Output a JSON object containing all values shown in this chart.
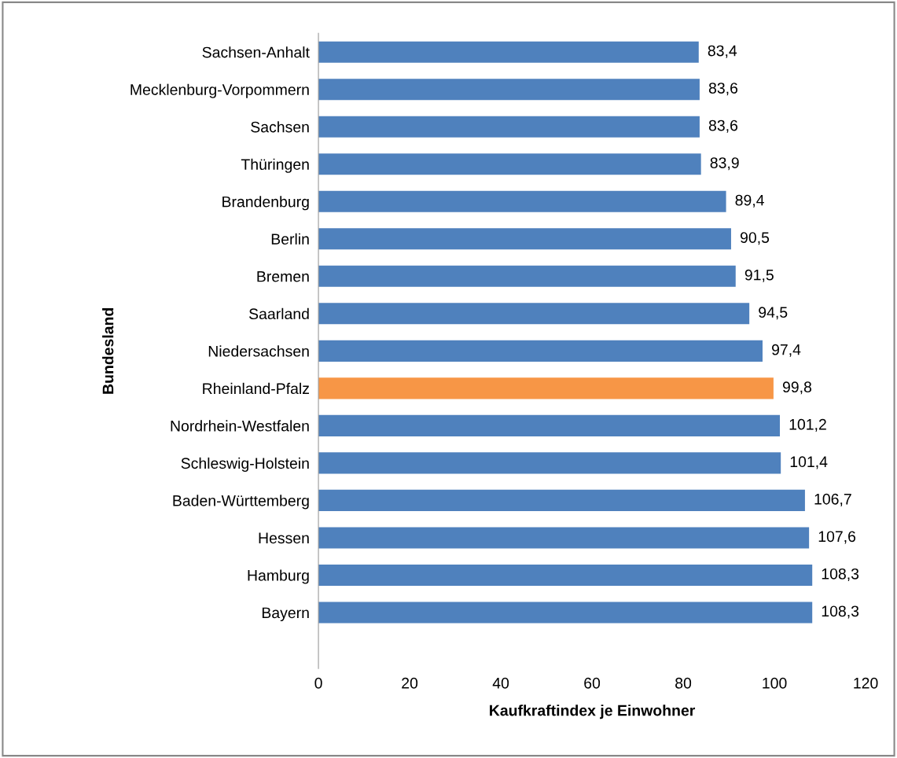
{
  "chart_data": {
    "type": "bar",
    "orientation": "horizontal",
    "xlabel": "Kaufkraftindex je Einwohner",
    "ylabel": "Bundesland",
    "categories": [
      "Sachsen-Anhalt",
      "Mecklenburg-Vorpommern",
      "Sachsen",
      "Thüringen",
      "Brandenburg",
      "Berlin",
      "Bremen",
      "Saarland",
      "Niedersachsen",
      "Rheinland-Pfalz",
      "Nordrhein-Westfalen",
      "Schleswig-Holstein",
      "Baden-Württemberg",
      "Hessen",
      "Hamburg",
      "Bayern"
    ],
    "values": [
      83.4,
      83.6,
      83.6,
      83.9,
      89.4,
      90.5,
      91.5,
      94.5,
      97.4,
      99.8,
      101.2,
      101.4,
      106.7,
      107.6,
      108.3,
      108.3
    ],
    "value_labels": [
      "83,4",
      "83,6",
      "83,6",
      "83,9",
      "89,4",
      "90,5",
      "91,5",
      "94,5",
      "97,4",
      "99,8",
      "101,2",
      "101,4",
      "106,7",
      "107,6",
      "108,3",
      "108,3"
    ],
    "colors": [
      "#4f81bd",
      "#4f81bd",
      "#4f81bd",
      "#4f81bd",
      "#4f81bd",
      "#4f81bd",
      "#4f81bd",
      "#4f81bd",
      "#4f81bd",
      "#f79646",
      "#4f81bd",
      "#4f81bd",
      "#4f81bd",
      "#4f81bd",
      "#4f81bd",
      "#4f81bd"
    ],
    "xlim": [
      0,
      120
    ],
    "xticks": [
      0,
      20,
      40,
      60,
      80,
      100,
      120
    ],
    "grid": false,
    "legend": false
  }
}
